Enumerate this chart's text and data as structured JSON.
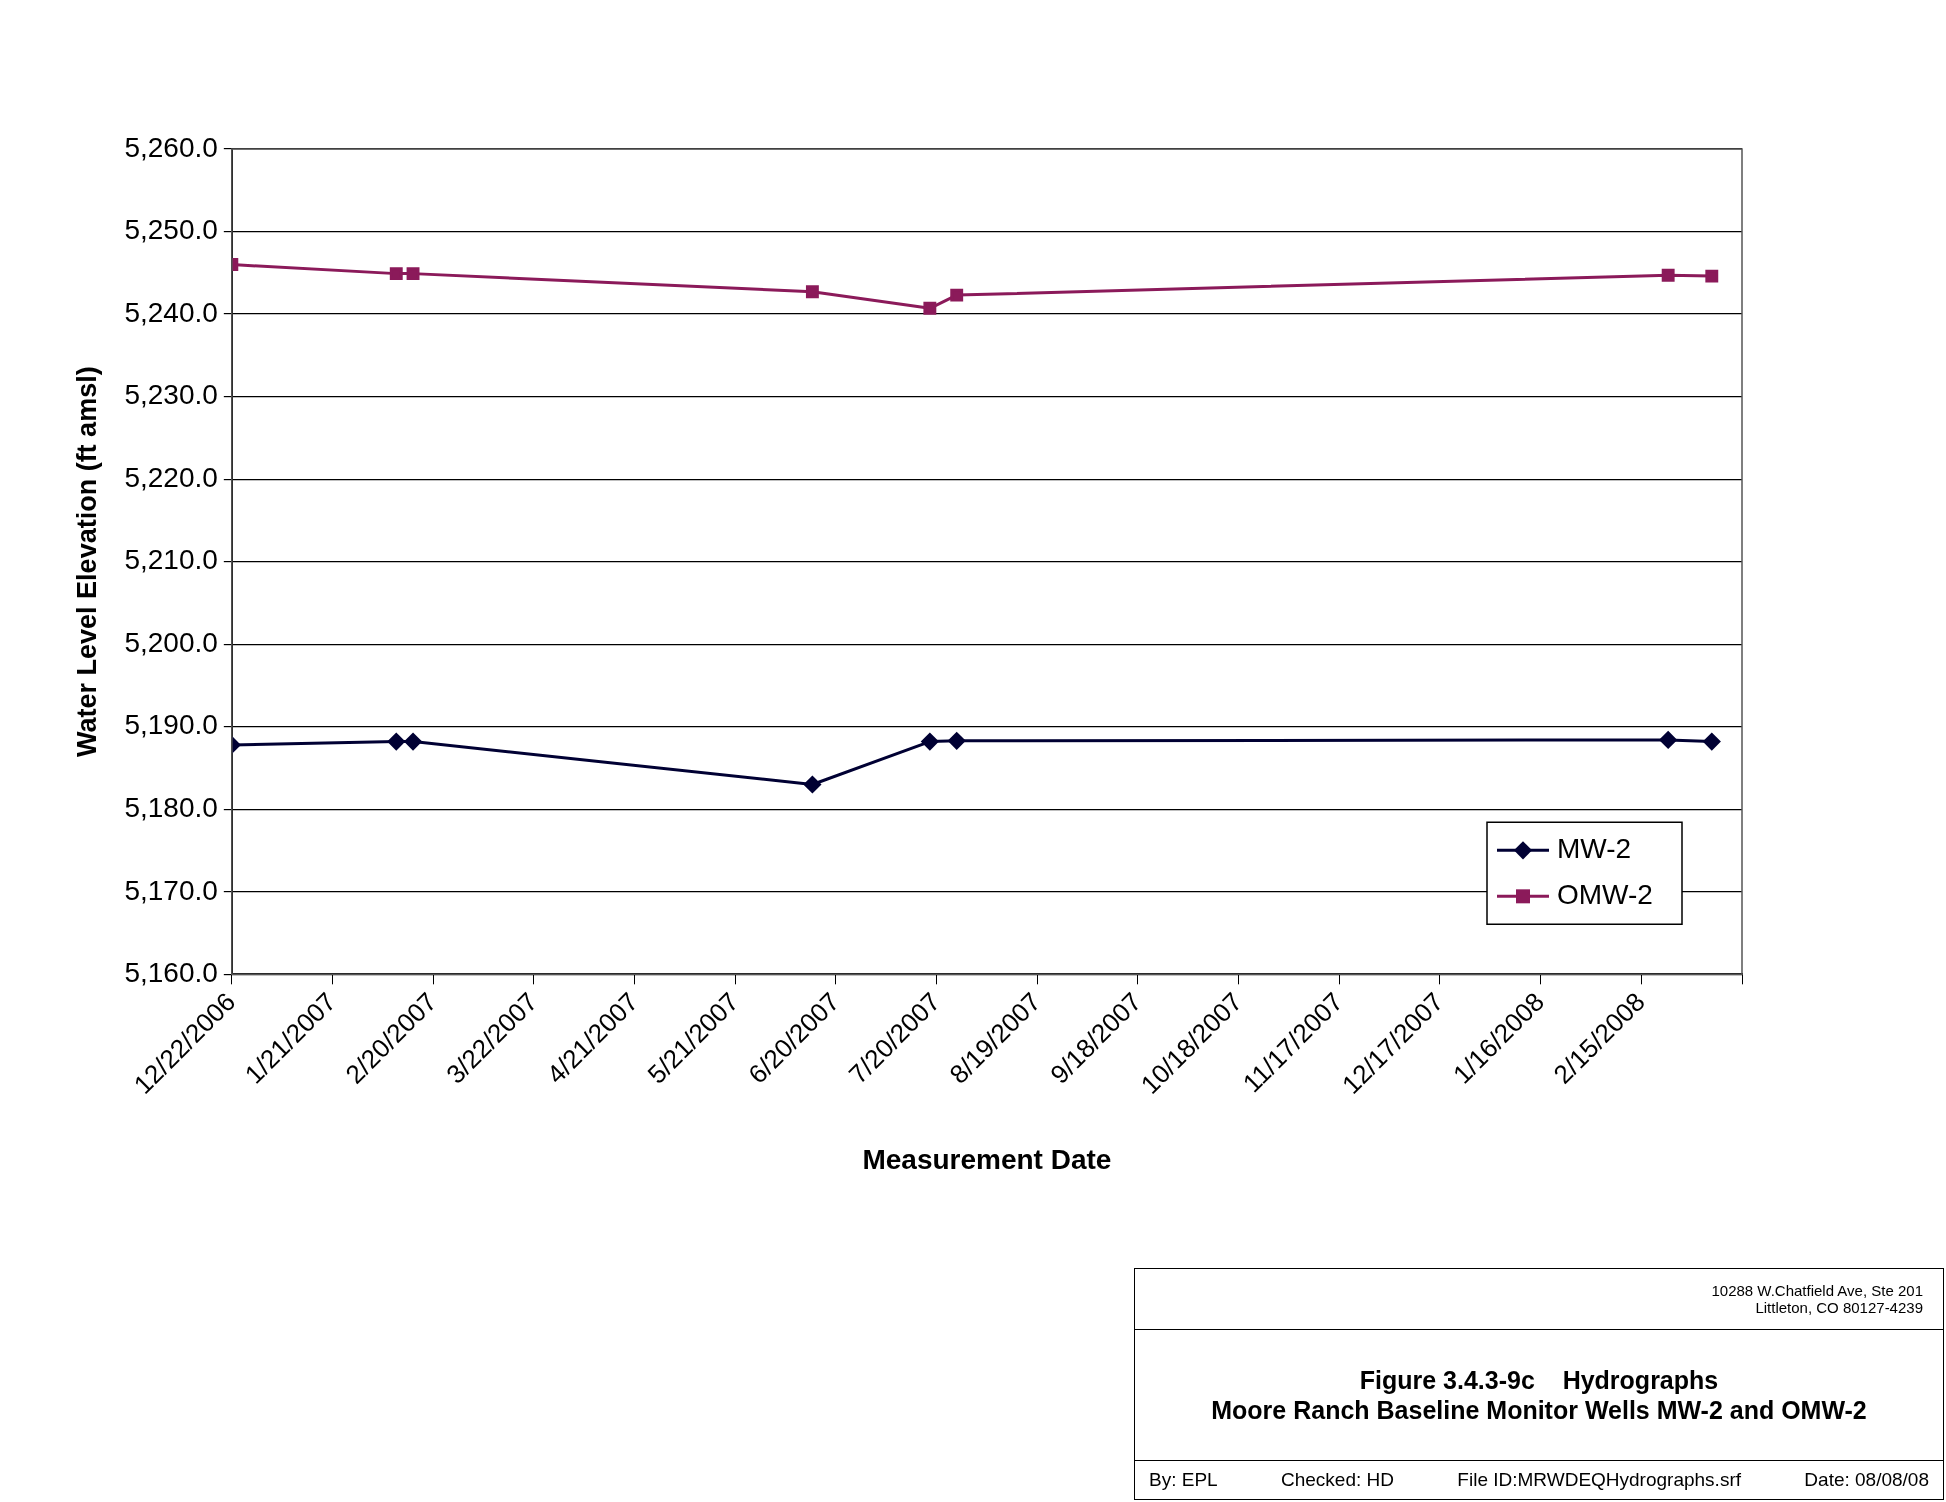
{
  "chart_data": {
    "type": "line",
    "title": "Figure 3.4.3-9c    Hydrographs",
    "subtitle": "Moore Ranch Baseline Monitor Wells MW-2 and OMW-2",
    "xlabel": "Measurement Date",
    "ylabel": "Water Level Elevation (ft amsl)",
    "series": [
      {
        "name": "MW-2",
        "color": "#000033",
        "marker": "diamond",
        "x": [
          "2006-12-22",
          "2007-02-09",
          "2007-02-14",
          "2007-06-13",
          "2007-07-18",
          "2007-07-26",
          "2008-02-23",
          "2008-03-07"
        ],
        "values": [
          5187.8,
          5188.2,
          5188.2,
          5183.0,
          5188.2,
          5188.3,
          5188.4,
          5188.2
        ]
      },
      {
        "name": "OMW-2",
        "color": "#8b1a5a",
        "marker": "square",
        "x": [
          "2006-12-22",
          "2007-02-09",
          "2007-02-14",
          "2007-06-13",
          "2007-07-18",
          "2007-07-26",
          "2008-02-23",
          "2008-03-07"
        ],
        "values": [
          5246.0,
          5244.9,
          5244.9,
          5242.7,
          5240.7,
          5242.3,
          5244.7,
          5244.6
        ]
      }
    ],
    "xlim": [
      "2006-12-22",
      "2008-03-16"
    ],
    "xticks": [
      {
        "value": "2006-12-22",
        "label": "12/22/2006"
      },
      {
        "value": "2007-01-21",
        "label": "1/21/2007"
      },
      {
        "value": "2007-02-20",
        "label": "2/20/2007"
      },
      {
        "value": "2007-03-22",
        "label": "3/22/2007"
      },
      {
        "value": "2007-04-21",
        "label": "4/21/2007"
      },
      {
        "value": "2007-05-21",
        "label": "5/21/2007"
      },
      {
        "value": "2007-06-20",
        "label": "6/20/2007"
      },
      {
        "value": "2007-07-20",
        "label": "7/20/2007"
      },
      {
        "value": "2007-08-19",
        "label": "8/19/2007"
      },
      {
        "value": "2007-09-18",
        "label": "9/18/2007"
      },
      {
        "value": "2007-10-18",
        "label": "10/18/2007"
      },
      {
        "value": "2007-11-17",
        "label": "11/17/2007"
      },
      {
        "value": "2007-12-17",
        "label": "12/17/2007"
      },
      {
        "value": "2008-01-16",
        "label": "1/16/2008"
      },
      {
        "value": "2008-02-15",
        "label": "2/15/2008"
      },
      {
        "value": "2008-03-16",
        "label": null
      }
    ],
    "ylim": [
      5160,
      5260
    ],
    "yticks": [
      {
        "value": 5160,
        "label": "5,160.0"
      },
      {
        "value": 5170,
        "label": "5,170.0"
      },
      {
        "value": 5180,
        "label": "5,180.0"
      },
      {
        "value": 5190,
        "label": "5,190.0"
      },
      {
        "value": 5200,
        "label": "5,200.0"
      },
      {
        "value": 5210,
        "label": "5,210.0"
      },
      {
        "value": 5220,
        "label": "5,220.0"
      },
      {
        "value": 5230,
        "label": "5,230.0"
      },
      {
        "value": 5240,
        "label": "5,240.0"
      },
      {
        "value": 5250,
        "label": "5,250.0"
      },
      {
        "value": 5260,
        "label": "5,260.0"
      }
    ],
    "grid": "y",
    "legend": "bottom right",
    "annotations": [
      "10288 W.Chatfield Ave, Ste 201",
      "Littleton, CO 80127-4239",
      "By: EPL",
      "Checked: HD",
      "File ID:MRWDEQHydrographs.srf",
      "Date: 08/08/08"
    ]
  }
}
